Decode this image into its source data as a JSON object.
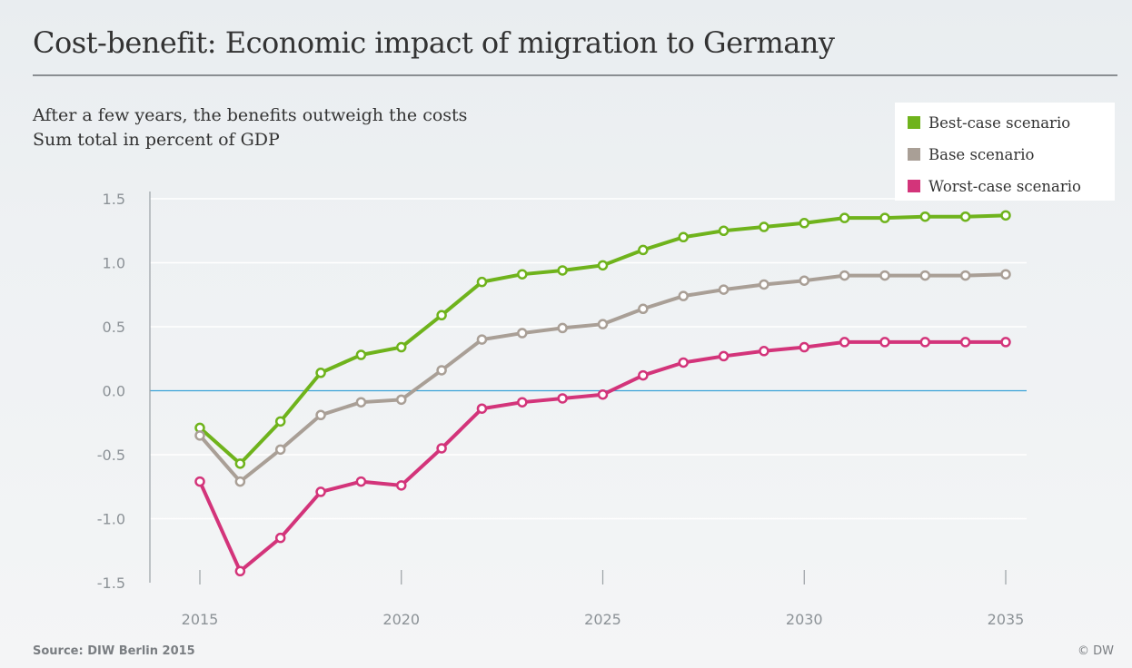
{
  "title": "Cost-benefit: Economic impact of migration to Germany",
  "subtitle_line1": "After a few years, the benefits outweigh the costs",
  "subtitle_line2": "Sum total in percent of GDP",
  "source": "Source: DIW Berlin 2015",
  "credit": "© DW",
  "legend": [
    {
      "label": "Best-case scenario",
      "color": "#6fb31c"
    },
    {
      "label": "Base scenario",
      "color": "#a99f96"
    },
    {
      "label": "Worst-case scenario",
      "color": "#d3347a"
    }
  ],
  "chart_data": {
    "type": "line",
    "title": "Cost-benefit: Economic impact of migration to Germany",
    "subtitle": "After a few years, the benefits outweigh the costs",
    "ylabel": "Sum total in percent of GDP",
    "xlabel": "",
    "ylim": [
      -1.5,
      1.5
    ],
    "yticks": [
      1.5,
      1.0,
      0.5,
      0.0,
      -0.5,
      -1.0,
      -1.5
    ],
    "ytick_labels": [
      "1.5",
      "1.0",
      "0.5",
      "0.0",
      "-0.5",
      "-1.0",
      "-1.5"
    ],
    "xticks": [
      2015,
      2020,
      2025,
      2030,
      2035
    ],
    "xtick_labels": [
      "2015",
      "2020",
      "2025",
      "2030",
      "2035"
    ],
    "x": [
      2015,
      2016,
      2017,
      2018,
      2019,
      2020,
      2021,
      2022,
      2023,
      2024,
      2025,
      2026,
      2027,
      2028,
      2029,
      2030,
      2031,
      2032,
      2033,
      2034,
      2035
    ],
    "grid": true,
    "legend_position": "top-right",
    "series": [
      {
        "name": "Best-case scenario",
        "color": "#6fb31c",
        "values": [
          -0.29,
          -0.57,
          -0.24,
          0.14,
          0.28,
          0.34,
          0.59,
          0.85,
          0.91,
          0.94,
          0.98,
          1.1,
          1.2,
          1.25,
          1.28,
          1.31,
          1.35,
          1.35,
          1.36,
          1.36,
          1.37
        ]
      },
      {
        "name": "Base scenario",
        "color": "#a99f96",
        "values": [
          -0.35,
          -0.71,
          -0.46,
          -0.19,
          -0.09,
          -0.07,
          0.16,
          0.4,
          0.45,
          0.49,
          0.52,
          0.64,
          0.74,
          0.79,
          0.83,
          0.86,
          0.9,
          0.9,
          0.9,
          0.9,
          0.91
        ]
      },
      {
        "name": "Worst-case scenario",
        "color": "#d3347a",
        "values": [
          -0.71,
          -1.41,
          -1.15,
          -0.79,
          -0.71,
          -0.74,
          -0.45,
          -0.14,
          -0.09,
          -0.06,
          -0.03,
          0.12,
          0.22,
          0.27,
          0.31,
          0.34,
          0.38,
          0.38,
          0.38,
          0.38,
          0.38
        ]
      }
    ]
  }
}
